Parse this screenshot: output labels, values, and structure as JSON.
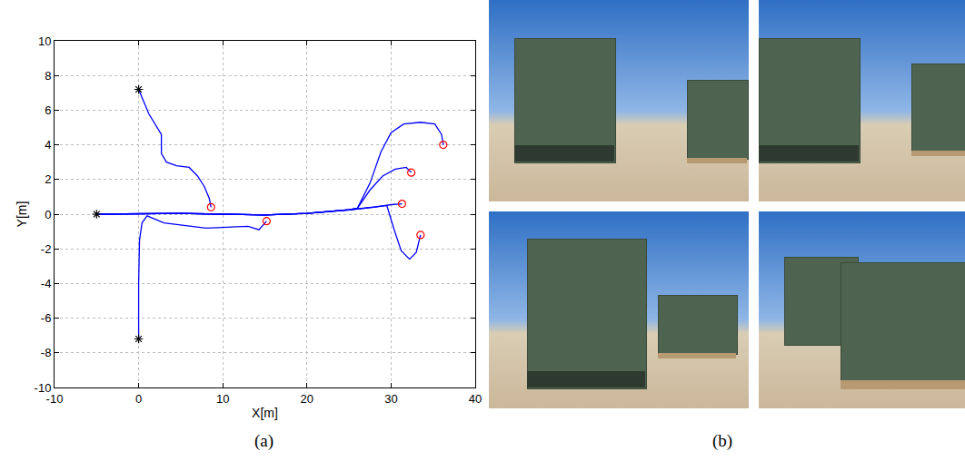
{
  "chart_data": {
    "type": "line",
    "x_label": "X[m]",
    "y_label": "Y[m]",
    "xlim": [
      -10,
      40
    ],
    "xticks": [
      -10,
      0,
      10,
      20,
      30,
      40
    ],
    "ylim": [
      -10,
      10
    ],
    "yticks": [
      -10,
      -8,
      -6,
      -4,
      -2,
      0,
      2,
      4,
      6,
      8,
      10
    ],
    "grid": true,
    "annotations": [
      "(a)",
      "(b)"
    ],
    "series": [
      {
        "color": "#0000ff",
        "line_style": "solid",
        "x": [
          0,
          1.2,
          2.7,
          2.7,
          3.3,
          4.5,
          6,
          7,
          7.8,
          8.4,
          8.6
        ],
        "values": [
          7.2,
          5.8,
          4.6,
          3.5,
          3.0,
          2.8,
          2.7,
          2.2,
          1.6,
          0.9,
          0.4
        ]
      },
      {
        "color": "#0000ff",
        "line_style": "solid",
        "x": [
          -5,
          5,
          15,
          20,
          25,
          28,
          30,
          31.3
        ],
        "values": [
          0,
          0.05,
          -0.05,
          0.05,
          0.25,
          0.4,
          0.55,
          0.6
        ]
      },
      {
        "color": "#0000ff",
        "line_style": "solid",
        "x": [
          -5,
          5,
          15,
          20,
          25,
          26,
          27.5,
          29,
          30.5,
          31.8,
          32.4
        ],
        "values": [
          0,
          0.05,
          -0.05,
          0.05,
          0.25,
          0.35,
          1.4,
          2.2,
          2.6,
          2.7,
          2.4
        ]
      },
      {
        "color": "#0000ff",
        "line_style": "solid",
        "x": [
          -5,
          5,
          15,
          20,
          25,
          26,
          27.5,
          28.8,
          30,
          31.5,
          33.5,
          35.2,
          36,
          36.2
        ],
        "values": [
          0,
          0.05,
          -0.05,
          0.05,
          0.25,
          0.35,
          1.8,
          3.6,
          4.7,
          5.2,
          5.3,
          5.2,
          4.6,
          4.0
        ]
      },
      {
        "color": "#0000ff",
        "line_style": "solid",
        "x": [
          -5,
          5,
          15,
          20,
          25,
          28,
          29.5,
          30.3,
          31.2,
          32.2,
          33,
          33.5
        ],
        "values": [
          0,
          0.05,
          -0.05,
          0.05,
          0.25,
          0.4,
          0.5,
          -0.8,
          -2.1,
          -2.6,
          -2.2,
          -1.2
        ]
      },
      {
        "color": "#0000ff",
        "line_style": "solid",
        "x": [
          0,
          0,
          0.1,
          0.4,
          1,
          3,
          8,
          13,
          14.3,
          14.8,
          15.2
        ],
        "values": [
          -7.2,
          -4,
          -1.5,
          -0.5,
          -0.1,
          -0.5,
          -0.8,
          -0.7,
          -0.9,
          -0.6,
          -0.4
        ]
      },
      {
        "color": "#000000",
        "line_style": "none",
        "marker": "asterisk",
        "x": [
          -5,
          0,
          0
        ],
        "values": [
          0,
          7.2,
          -7.2
        ]
      },
      {
        "color": "#ff0000",
        "line_style": "none",
        "marker": "circle",
        "x": [
          8.6,
          31.3,
          32.4,
          36.2,
          33.5,
          15.2
        ],
        "values": [
          0.4,
          0.6,
          2.4,
          4.0,
          -1.2,
          -0.4
        ]
      }
    ]
  }
}
